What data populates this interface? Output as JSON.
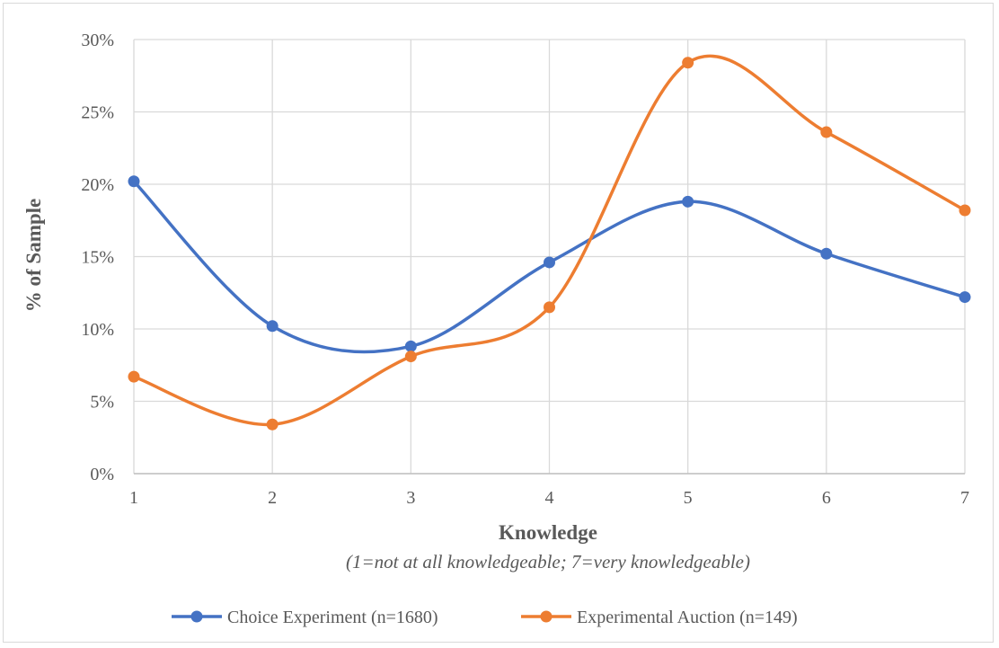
{
  "chart_data": {
    "type": "line",
    "smooth": true,
    "x": [
      1,
      2,
      3,
      4,
      5,
      6,
      7
    ],
    "series": [
      {
        "name": "Choice Experiment (n=1680)",
        "color": "#4472C4",
        "values": [
          20.2,
          10.2,
          8.8,
          14.6,
          18.8,
          15.2,
          12.2
        ]
      },
      {
        "name": "Experimental Auction (n=149)",
        "color": "#ED7D31",
        "values": [
          6.7,
          3.4,
          8.1,
          11.5,
          28.4,
          23.6,
          18.2
        ]
      }
    ],
    "xlabel": "Knowledge",
    "xlabel_note": "(1=not at all knowledgeable; 7=very knowledgeable)",
    "ylabel": "% of Sample",
    "ylim": [
      0,
      30
    ],
    "yticks": [
      0,
      5,
      10,
      15,
      20,
      25,
      30
    ],
    "ytick_labels": [
      "0%",
      "5%",
      "10%",
      "15%",
      "20%",
      "25%",
      "30%"
    ],
    "xtick_labels": [
      "1",
      "2",
      "3",
      "4",
      "5",
      "6",
      "7"
    ],
    "grid": true,
    "legend_position": "bottom"
  }
}
